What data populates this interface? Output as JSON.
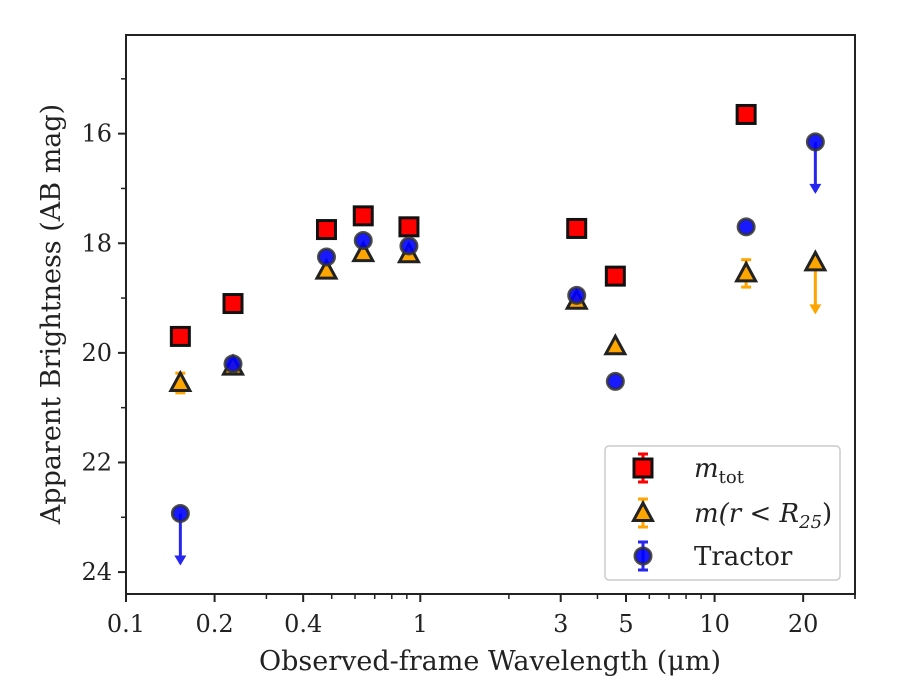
{
  "chart_data": {
    "type": "scatter",
    "xlabel": "Observed-frame Wavelength (μm)",
    "ylabel": "Apparent Brightness (AB mag)",
    "xscale": "log",
    "xlim": [
      0.1,
      30
    ],
    "ylim": [
      24.4,
      14.2
    ],
    "y_inverted": true,
    "grid": false,
    "legend_placement": "lower-right",
    "x_ticks": [
      0.1,
      0.2,
      0.4,
      1,
      3,
      5,
      10,
      20
    ],
    "x_tick_labels": [
      "0.1",
      "0.2",
      "0.4",
      "1",
      "3",
      "5",
      "10",
      "20"
    ],
    "y_ticks": [
      16,
      18,
      20,
      22,
      24
    ],
    "y_tick_labels": [
      "16",
      "18",
      "20",
      "22",
      "24"
    ],
    "series": [
      {
        "name": "m_tot",
        "legend_parts": [
          "m",
          "tot",
          ""
        ],
        "marker": "square",
        "color": "#ff0000",
        "edge": "#111111",
        "points": [
          {
            "x": 0.153,
            "y": 19.7
          },
          {
            "x": 0.231,
            "y": 19.1
          },
          {
            "x": 0.48,
            "y": 17.75
          },
          {
            "x": 0.64,
            "y": 17.5
          },
          {
            "x": 0.915,
            "y": 17.7
          },
          {
            "x": 3.4,
            "y": 17.73
          },
          {
            "x": 4.6,
            "y": 18.6
          },
          {
            "x": 12.8,
            "y": 15.65
          }
        ]
      },
      {
        "name": "m(r < R25)",
        "legend_parts": [
          "m(r < R",
          "25",
          ")"
        ],
        "marker": "triangle",
        "color": "#ffa500",
        "edge": "#222222",
        "points": [
          {
            "x": 0.153,
            "y": 20.55,
            "yerr": 0.18
          },
          {
            "x": 0.231,
            "y": 20.25
          },
          {
            "x": 0.48,
            "y": 18.5
          },
          {
            "x": 0.64,
            "y": 18.18
          },
          {
            "x": 0.915,
            "y": 18.2
          },
          {
            "x": 3.4,
            "y": 19.05
          },
          {
            "x": 4.6,
            "y": 19.88
          },
          {
            "x": 12.8,
            "y": 18.55,
            "yerr": 0.25
          },
          {
            "x": 22.0,
            "y": 18.35,
            "upper_limit": true
          }
        ]
      },
      {
        "name": "Tractor",
        "legend_parts": [
          "Tractor",
          "",
          ""
        ],
        "marker": "circle",
        "color": "#0000ff",
        "edge": "#333333",
        "points": [
          {
            "x": 0.153,
            "y": 22.93,
            "upper_limit": true
          },
          {
            "x": 0.231,
            "y": 20.2
          },
          {
            "x": 0.48,
            "y": 18.25
          },
          {
            "x": 0.64,
            "y": 17.95
          },
          {
            "x": 0.915,
            "y": 18.05
          },
          {
            "x": 3.4,
            "y": 18.95
          },
          {
            "x": 4.6,
            "y": 20.52
          },
          {
            "x": 12.8,
            "y": 17.7
          },
          {
            "x": 22.0,
            "y": 16.15,
            "upper_limit": true
          }
        ]
      }
    ]
  }
}
